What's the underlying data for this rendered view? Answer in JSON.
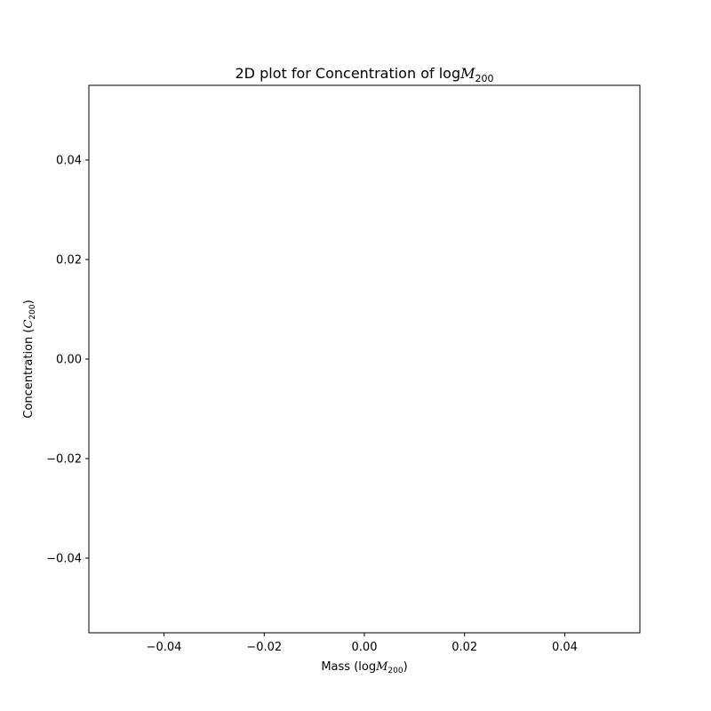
{
  "chart_data": {
    "type": "scatter",
    "title": {
      "prefix": "2D plot for Concentration of log",
      "symbol": "M",
      "subscript": "200"
    },
    "xlabel": {
      "prefix": "Mass (log",
      "symbol": "M",
      "subscript": "200",
      "suffix": ")"
    },
    "ylabel": {
      "prefix": "Concentration (",
      "symbol": "C",
      "subscript": "200",
      "suffix": ")"
    },
    "xlim": [
      -0.055,
      0.055
    ],
    "ylim": [
      -0.055,
      0.055
    ],
    "x_ticks": [
      -0.04,
      -0.02,
      0.0,
      0.02,
      0.04
    ],
    "y_ticks": [
      -0.04,
      -0.02,
      0.0,
      0.02,
      0.04
    ],
    "x_tick_labels": [
      "−0.04",
      "−0.02",
      "0.00",
      "0.02",
      "0.04"
    ],
    "y_tick_labels": [
      "−0.04",
      "−0.02",
      "0.00",
      "0.02",
      "0.04"
    ],
    "grid": false,
    "series": [
      {
        "x": [],
        "y": []
      }
    ],
    "colors": {
      "axes": "#000000",
      "background": "#ffffff"
    }
  }
}
